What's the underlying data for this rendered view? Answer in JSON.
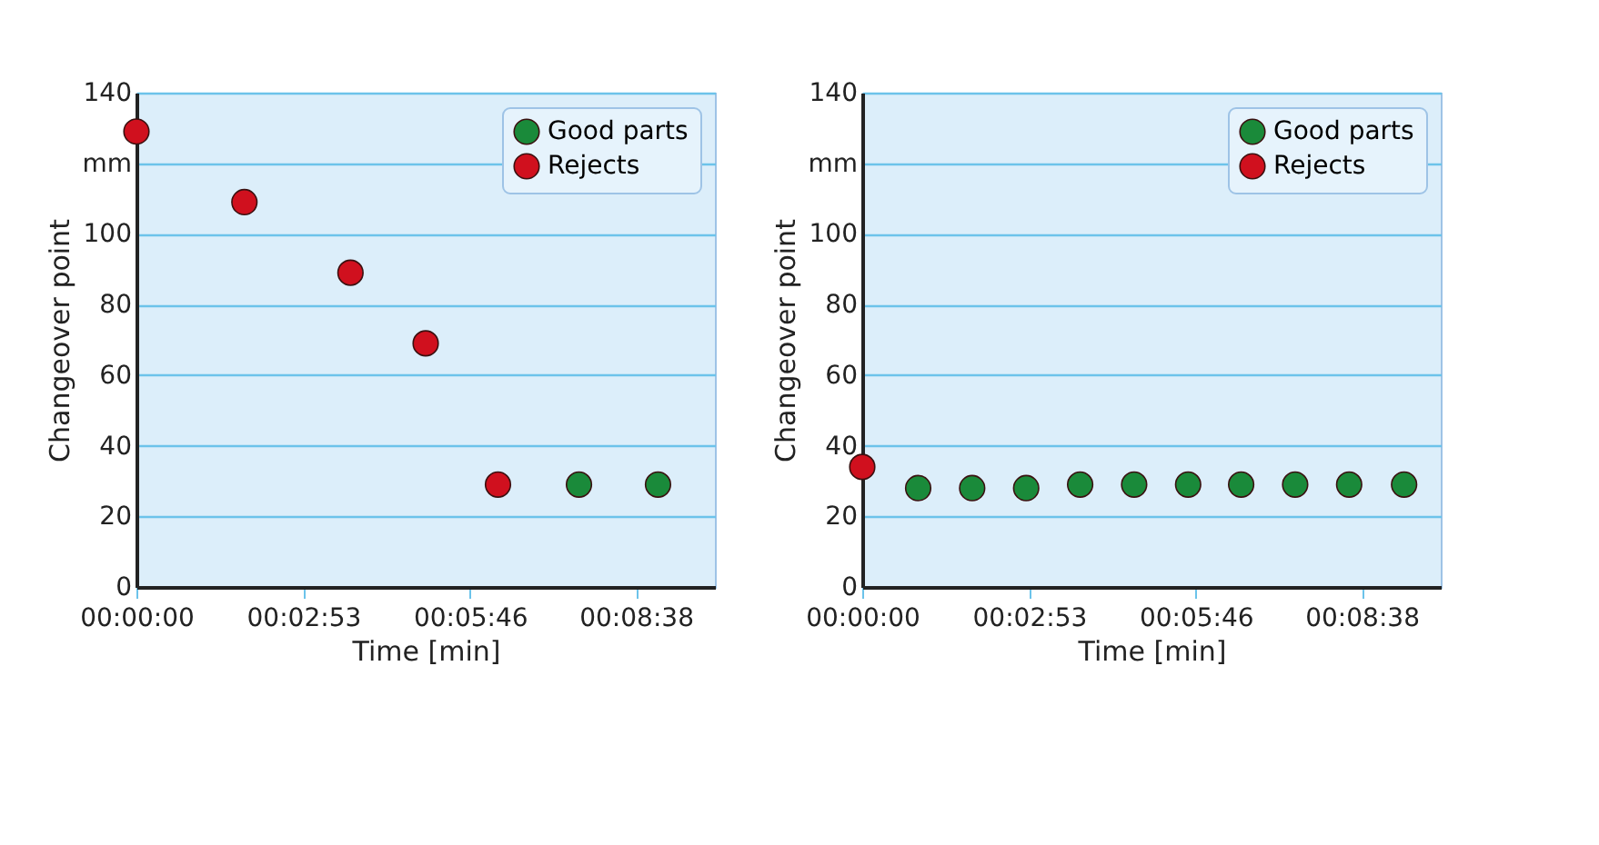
{
  "chart_data": [
    {
      "type": "scatter",
      "xlabel": "Time [min]",
      "ylabel": "Changeover point",
      "xlim": [
        0,
        600
      ],
      "ylim": [
        0,
        140
      ],
      "xticks": [
        {
          "value": 0,
          "label": "00:00:00"
        },
        {
          "value": 173,
          "label": "00:02:53"
        },
        {
          "value": 346,
          "label": "00:05:46"
        },
        {
          "value": 518,
          "label": "00:08:38"
        }
      ],
      "yticks": [
        0,
        20,
        40,
        60,
        80,
        100,
        {
          "value": 120,
          "label": "mm"
        },
        140
      ],
      "grid": "y",
      "legend": "top right",
      "marker": "circle",
      "series": [
        {
          "name": "Good parts",
          "color": "#1a8a3a",
          "x": [
            459,
            541
          ],
          "values": [
            29,
            29
          ]
        },
        {
          "name": "Rejects",
          "color": "#d0101e",
          "x": [
            0,
            112,
            222,
            300,
            375
          ],
          "values": [
            129,
            109,
            89,
            69,
            29
          ]
        }
      ]
    },
    {
      "type": "scatter",
      "xlabel": "Time [min]",
      "ylabel": "Changeover point",
      "xlim": [
        0,
        600
      ],
      "ylim": [
        0,
        140
      ],
      "xticks": [
        {
          "value": 0,
          "label": "00:00:00"
        },
        {
          "value": 173,
          "label": "00:02:53"
        },
        {
          "value": 346,
          "label": "00:05:46"
        },
        {
          "value": 518,
          "label": "00:08:38"
        }
      ],
      "yticks": [
        0,
        20,
        40,
        60,
        80,
        100,
        {
          "value": 120,
          "label": "mm"
        },
        140
      ],
      "grid": "y",
      "legend": "top right",
      "marker": "circle",
      "series": [
        {
          "name": "Good parts",
          "color": "#1a8a3a",
          "x": [
            58,
            114,
            170,
            226,
            282,
            338,
            393,
            449,
            505,
            562
          ],
          "values": [
            28,
            28,
            28,
            29,
            29,
            29,
            29,
            29,
            29,
            29
          ]
        },
        {
          "name": "Rejects",
          "color": "#d0101e",
          "x": [
            0
          ],
          "values": [
            34
          ]
        }
      ]
    }
  ]
}
